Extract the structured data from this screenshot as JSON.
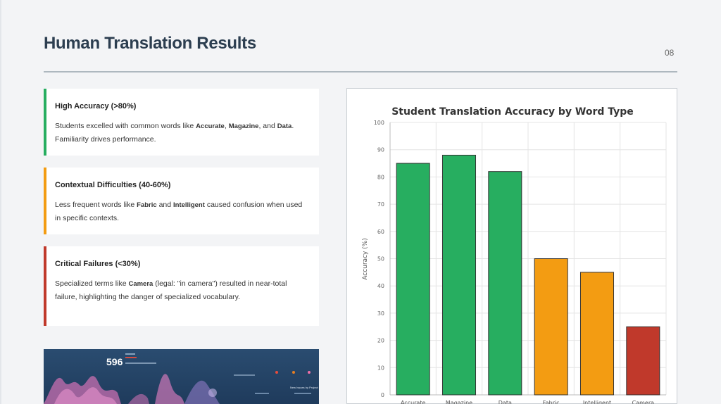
{
  "slide": {
    "title": "Human Translation Results",
    "page_number": "08"
  },
  "cards": [
    {
      "heading": "High Accuracy (>80%)",
      "text_1": "Students excelled with common words like ",
      "term_1": "Accurate",
      "text_2": ", ",
      "term_2": "Magazine",
      "text_3": ", and ",
      "term_3": "Data",
      "text_4": ". Familiarity drives performance.",
      "accent_color": "#27ae60"
    },
    {
      "heading": "Contextual Difficulties (40-60%)",
      "text_1": "Less frequent words like ",
      "term_1": "Fabric",
      "text_2": " and ",
      "term_2": "Intelligent",
      "text_3": " caused confusion when used in specific contexts.",
      "accent_color": "#f39c12"
    },
    {
      "heading": "Critical Failures (<30%)",
      "text_1": "Specialized terms like ",
      "term_1": "Camera",
      "text_2": " (legal: \"in camera\") resulted in near-total failure, highlighting the danger of specialized vocabulary.",
      "accent_color": "#c0392b"
    }
  ],
  "thumbnail": {
    "stat_value": "596",
    "caption": "New Issues by Project"
  },
  "chart_data": {
    "type": "bar",
    "title": "Student Translation Accuracy by Word Type",
    "xlabel": "",
    "ylabel": "Accuracy (%)",
    "ylim": [
      0,
      100
    ],
    "yticks": [
      0,
      10,
      20,
      30,
      40,
      50,
      60,
      70,
      80,
      90,
      100
    ],
    "grid": true,
    "categories": [
      "Accurate",
      "Magazine",
      "Data",
      "Fabric",
      "Intelligent",
      "Camera"
    ],
    "values": [
      85,
      88,
      82,
      50,
      45,
      25
    ],
    "colors": [
      "#27ae60",
      "#27ae60",
      "#27ae60",
      "#f39c12",
      "#f39c12",
      "#c0392b"
    ],
    "bar_edge_color": "#333333"
  }
}
